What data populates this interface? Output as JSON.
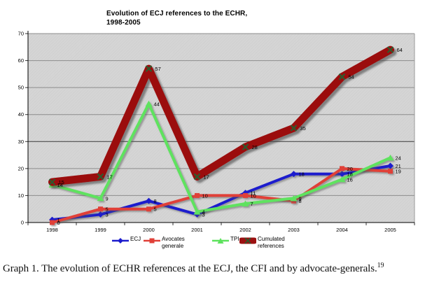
{
  "title": {
    "line1": "Evolution of ECJ references to the ECHR,",
    "line2": "1998-2005"
  },
  "caption": {
    "text": "Graph 1. The evolution of ECHR references at the ECJ, the CFI and by advocate-generals.",
    "superscript": "19"
  },
  "chart_data": {
    "type": "line",
    "title": "Evolution of ECJ references to the ECHR, 1998-2005",
    "categories": [
      "1998",
      "1999",
      "2000",
      "2001",
      "2002",
      "2003",
      "2004",
      "2005"
    ],
    "series": [
      {
        "name": "ECJ",
        "color": "#1c1ccd",
        "marker": "diamond",
        "thick": false,
        "values": [
          1,
          3,
          8,
          3,
          11,
          18,
          18,
          21
        ]
      },
      {
        "name": "Avocates generale",
        "color": "#e04038",
        "marker": "square",
        "thick": false,
        "values": [
          0,
          5,
          5,
          10,
          10,
          8,
          20,
          19
        ]
      },
      {
        "name": "TPI",
        "color": "#5ee25e",
        "marker": "triangle",
        "thick": false,
        "values": [
          14,
          9,
          44,
          4,
          7,
          9,
          16,
          24
        ]
      },
      {
        "name": "Cumulated references",
        "color": "#9b1111",
        "marker": "x",
        "marker_color": "#2d5a2d",
        "thick": true,
        "values": [
          15,
          17,
          57,
          17,
          28,
          35,
          54,
          64
        ]
      }
    ],
    "ylim": [
      0,
      70
    ],
    "yticks": [
      0,
      10,
      20,
      30,
      40,
      50,
      60,
      70
    ],
    "grid": true,
    "legend_position": "bottom",
    "plot_bg": "#d5d5d5",
    "gridline_color": "#8c8c8c",
    "data_labels": true
  },
  "legend": {
    "items": [
      "ECJ",
      "Avocates generale",
      "TPI",
      "Cumulated references"
    ]
  }
}
